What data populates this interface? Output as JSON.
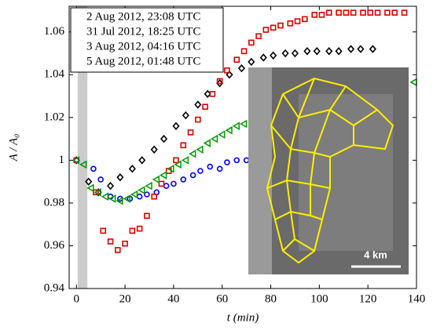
{
  "chart_data": {
    "type": "scatter",
    "xlabel": "t (min)",
    "ylabel": "A / A₀",
    "xlim": [
      -3,
      140
    ],
    "ylim": [
      0.94,
      1.072
    ],
    "xticks": [
      0,
      20,
      40,
      60,
      80,
      100,
      120,
      140
    ],
    "yticks": [
      0.94,
      0.96,
      0.98,
      1,
      1.02,
      1.04,
      1.06
    ],
    "shade": [
      0.5,
      4.5
    ],
    "legend": "upper left",
    "scale_label": "4 km",
    "series": [
      {
        "name": "2 Aug 2012, 23:08 UTC",
        "color": "#000000",
        "marker": "diamond",
        "x": [
          0,
          5,
          9,
          14,
          18,
          23,
          27,
          32,
          36,
          41,
          45,
          50,
          54,
          59,
          63,
          68,
          72,
          77,
          81,
          86,
          90,
          95,
          99,
          104,
          108,
          113,
          117,
          122
        ],
        "values": [
          1.0,
          0.99,
          0.985,
          0.988,
          0.992,
          0.996,
          1.0,
          1.005,
          1.01,
          1.016,
          1.021,
          1.026,
          1.031,
          1.036,
          1.04,
          1.043,
          1.046,
          1.048,
          1.049,
          1.05,
          1.05,
          1.051,
          1.051,
          1.051,
          1.051,
          1.052,
          1.052,
          1.052
        ]
      },
      {
        "name": "31 Jul 2012, 18:25 UTC",
        "color": "#0000ff",
        "marker": "circle",
        "x": [
          0,
          7,
          10,
          14,
          18,
          22,
          26,
          29,
          33,
          37,
          40,
          44,
          48,
          51,
          55,
          59,
          62,
          66,
          70
        ],
        "values": [
          1.0,
          0.996,
          0.991,
          0.983,
          0.982,
          0.982,
          0.983,
          0.984,
          0.985,
          0.988,
          0.989,
          0.991,
          0.993,
          0.995,
          0.997,
          0.996,
          0.999,
          1.0,
          1.0
        ]
      },
      {
        "name": "3 Aug 2012, 04:16 UTC",
        "color": "#dd0000",
        "marker": "square",
        "x": [
          0,
          8,
          11,
          14,
          17,
          20,
          23,
          26,
          29,
          32,
          35,
          38,
          41,
          44,
          47,
          50,
          53,
          56,
          59,
          62,
          66,
          69,
          72,
          75,
          78,
          81,
          84,
          88,
          91,
          94,
          98,
          101,
          104,
          108,
          111,
          114,
          118,
          121,
          124,
          128,
          131,
          135
        ],
        "values": [
          1.0,
          0.985,
          0.967,
          0.962,
          0.958,
          0.961,
          0.967,
          0.968,
          0.974,
          0.983,
          0.989,
          0.995,
          1.0,
          1.007,
          1.013,
          1.019,
          1.025,
          1.031,
          1.037,
          1.042,
          1.047,
          1.051,
          1.055,
          1.058,
          1.061,
          1.062,
          1.063,
          1.064,
          1.065,
          1.066,
          1.068,
          1.068,
          1.069,
          1.069,
          1.069,
          1.069,
          1.069,
          1.069,
          1.069,
          1.069,
          1.069,
          1.069
        ]
      },
      {
        "name": "5 Aug 2012, 01:48 UTC",
        "color": "#009900",
        "marker": "triangle",
        "x": [
          0,
          3,
          6,
          9,
          12,
          15,
          18,
          21,
          24,
          27,
          30,
          33,
          36,
          39,
          42,
          45,
          48,
          51,
          54,
          57,
          60,
          63,
          66,
          69,
          139
        ],
        "values": [
          1.0,
          0.998,
          0.987,
          0.985,
          0.983,
          0.982,
          0.981,
          0.982,
          0.984,
          0.986,
          0.988,
          0.991,
          0.993,
          0.996,
          0.998,
          1.0,
          1.003,
          1.005,
          1.008,
          1.01,
          1.012,
          1.014,
          1.016,
          1.017,
          1.0365
        ]
      }
    ]
  }
}
